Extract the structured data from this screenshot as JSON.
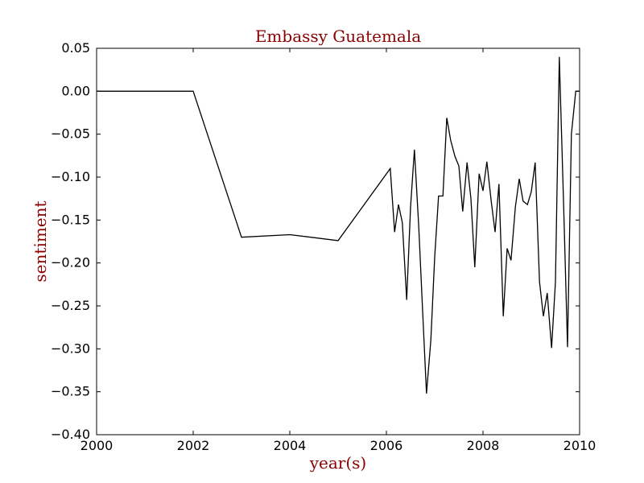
{
  "chart_data": {
    "type": "line",
    "title": "Embassy Guatemala",
    "xlabel": "year(s)",
    "ylabel": "sentiment",
    "xlim": [
      2000,
      2010
    ],
    "ylim": [
      -0.4,
      0.05
    ],
    "x_ticks": [
      2000,
      2002,
      2004,
      2006,
      2008,
      2010
    ],
    "x_tick_labels": [
      "2000",
      "2002",
      "2004",
      "2006",
      "2008",
      "2010"
    ],
    "y_ticks": [
      0.05,
      0.0,
      -0.05,
      -0.1,
      -0.15,
      -0.2,
      -0.25,
      -0.3,
      -0.35,
      -0.4
    ],
    "y_tick_labels": [
      "0.05",
      "0.00",
      "−0.05",
      "−0.10",
      "−0.15",
      "−0.20",
      "−0.25",
      "−0.30",
      "−0.35",
      "−0.40"
    ],
    "grid": false,
    "line_color": "#000000",
    "title_color": "#8b0000",
    "series": [
      {
        "x": [
          2000,
          2002,
          2003,
          2004,
          2005,
          2006.08,
          2006.17,
          2006.25,
          2006.33,
          2006.42,
          2006.5,
          2006.58,
          2006.67,
          2006.75,
          2006.83,
          2006.92,
          2007.0,
          2007.08,
          2007.17,
          2007.25,
          2007.33,
          2007.42,
          2007.5,
          2007.58,
          2007.67,
          2007.75,
          2007.83,
          2007.92,
          2008.0,
          2008.08,
          2008.17,
          2008.25,
          2008.33,
          2008.42,
          2008.5,
          2008.58,
          2008.67,
          2008.75,
          2008.83,
          2008.92,
          2009.0,
          2009.08,
          2009.17,
          2009.25,
          2009.33,
          2009.42,
          2009.5,
          2009.58,
          2009.67,
          2009.75,
          2009.83,
          2009.92,
          2010.0
        ],
        "y": [
          0.0,
          0.0,
          -0.17,
          -0.167,
          -0.174,
          -0.09,
          -0.164,
          -0.132,
          -0.153,
          -0.243,
          -0.135,
          -0.068,
          -0.158,
          -0.256,
          -0.352,
          -0.29,
          -0.193,
          -0.122,
          -0.122,
          -0.031,
          -0.057,
          -0.076,
          -0.087,
          -0.14,
          -0.083,
          -0.125,
          -0.205,
          -0.096,
          -0.116,
          -0.082,
          -0.128,
          -0.164,
          -0.108,
          -0.262,
          -0.183,
          -0.197,
          -0.135,
          -0.102,
          -0.128,
          -0.132,
          -0.117,
          -0.083,
          -0.222,
          -0.262,
          -0.235,
          -0.299,
          -0.222,
          0.04,
          -0.134,
          -0.298,
          -0.05,
          0.0,
          0.0
        ]
      }
    ]
  }
}
